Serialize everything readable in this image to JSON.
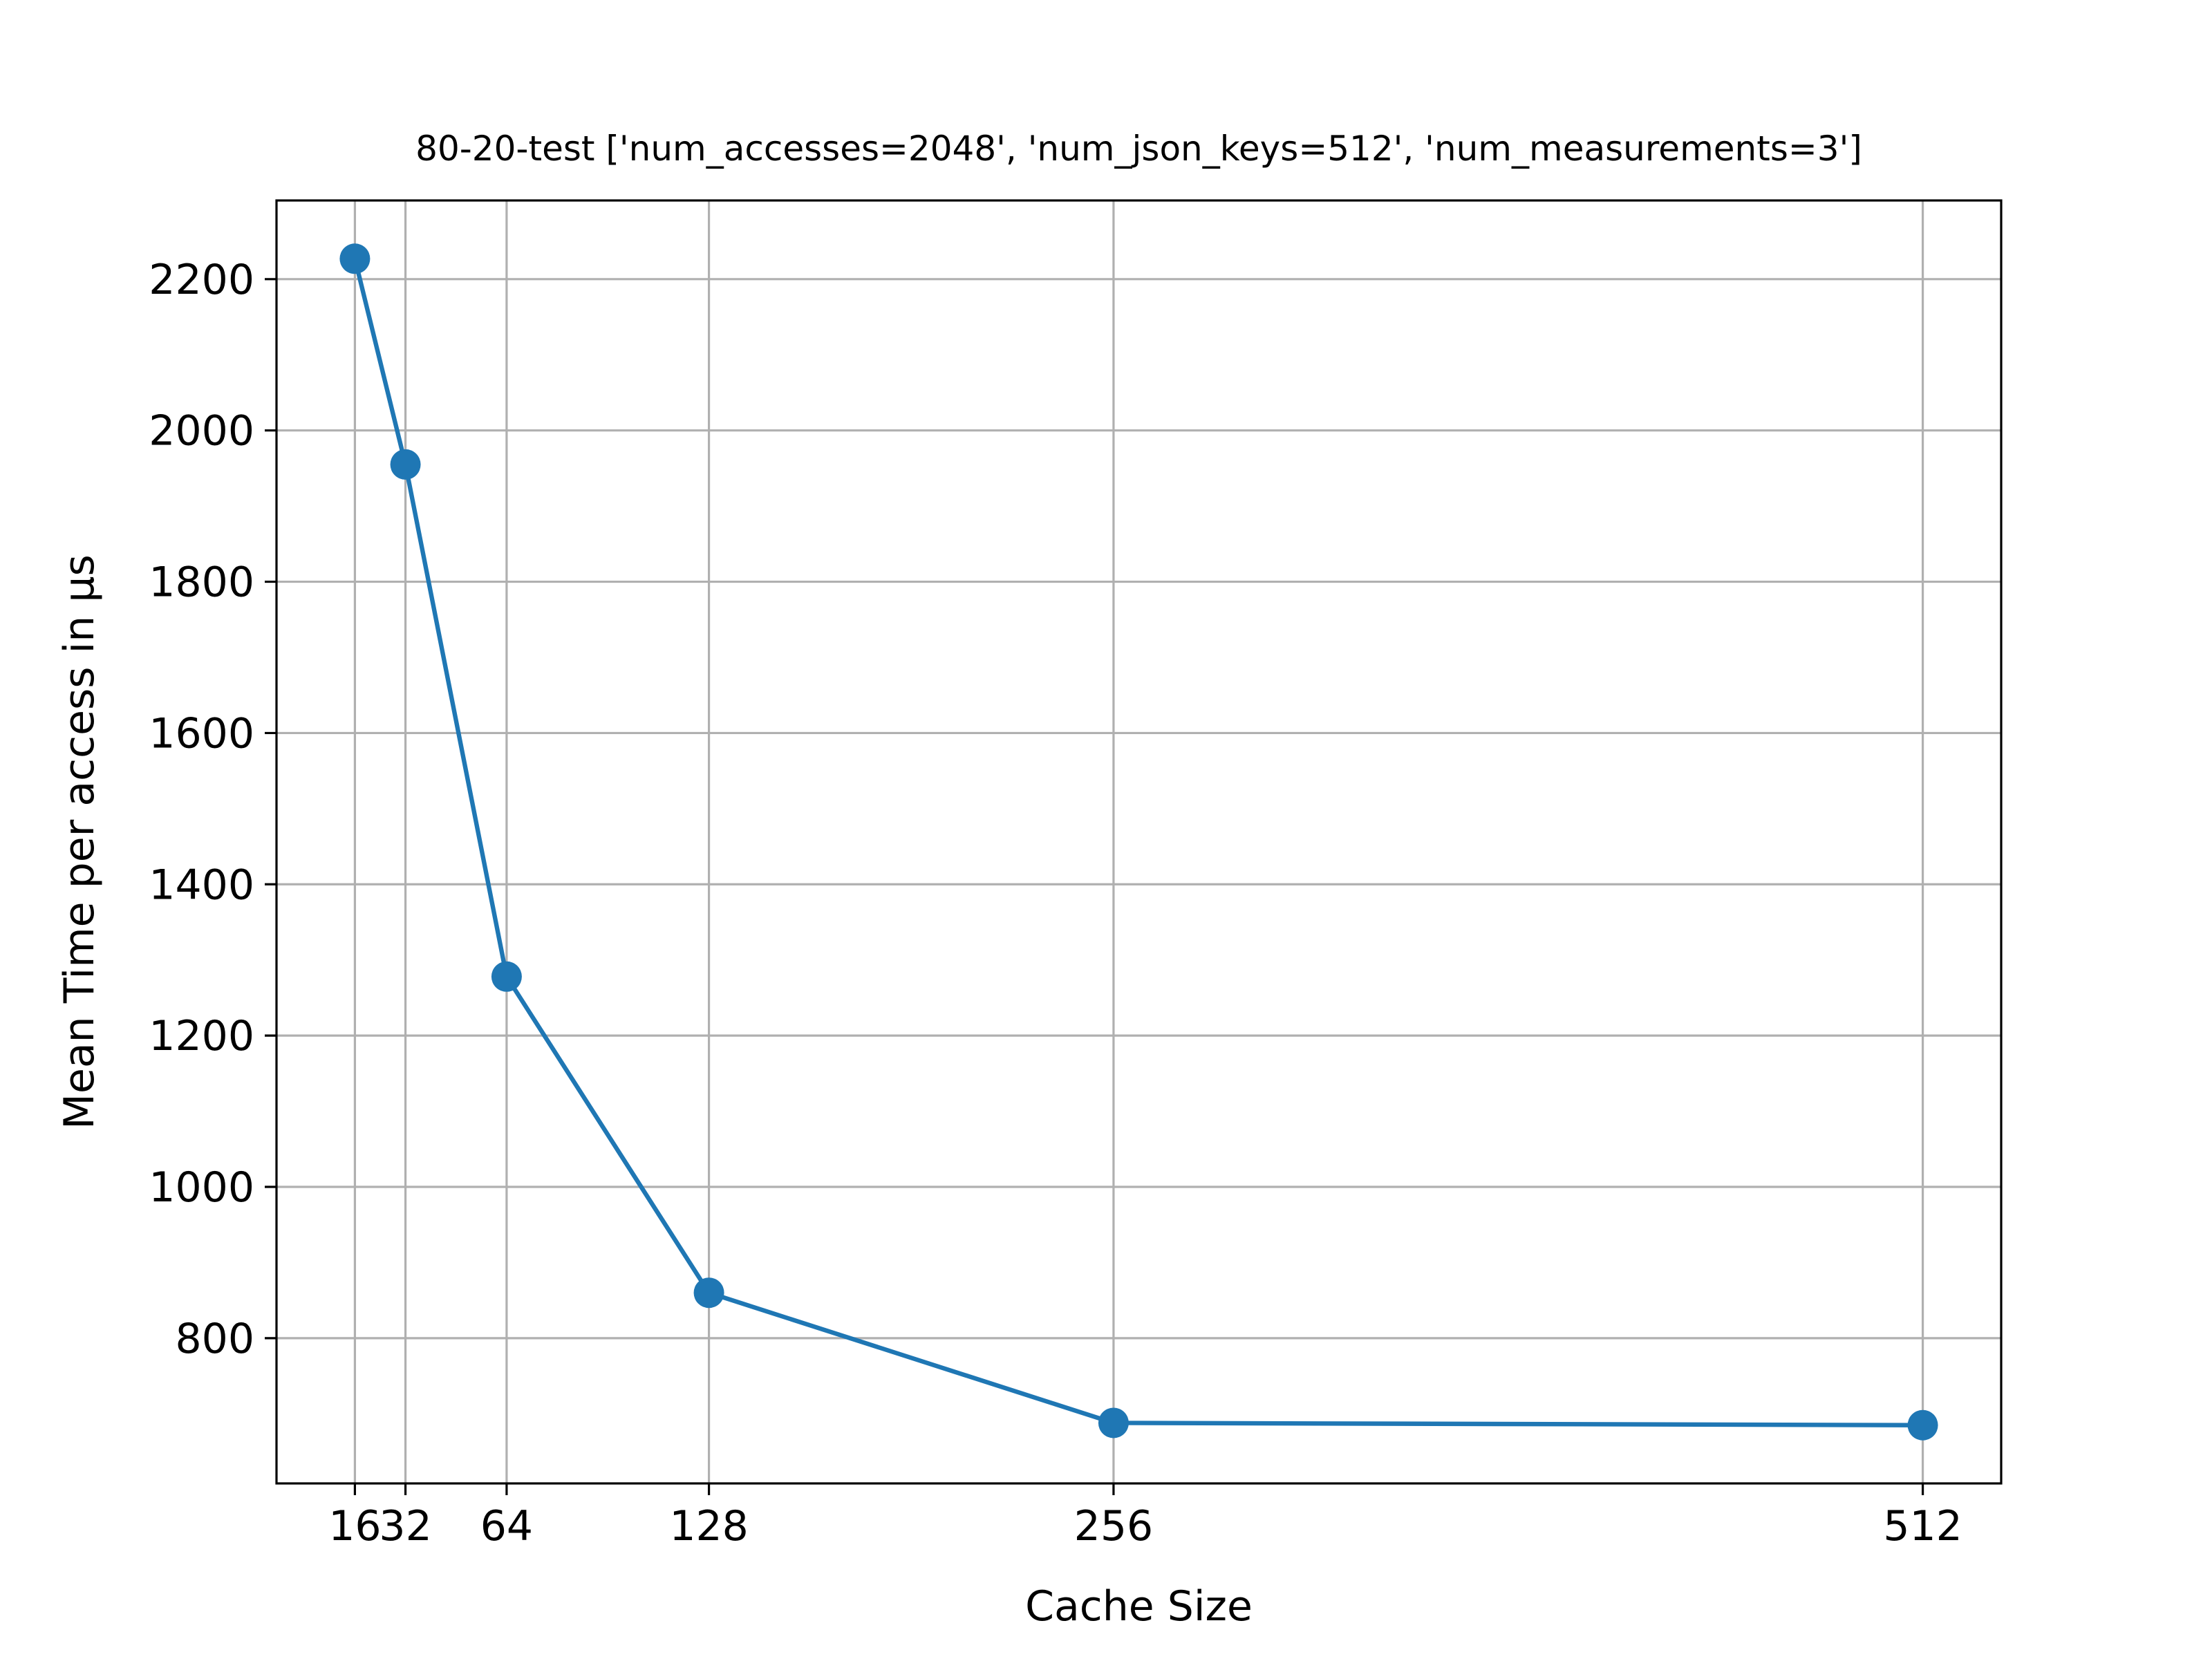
{
  "chart_data": {
    "type": "line",
    "title": "80-20-test ['num_accesses=2048', 'num_json_keys=512', 'num_measurements=3']",
    "xlabel": "Cache Size",
    "ylabel": "Mean Time per access in μs",
    "x": [
      16,
      32,
      64,
      128,
      256,
      512
    ],
    "series": [
      {
        "values": [
          2227,
          1955,
          1278,
          860,
          688,
          685
        ]
      }
    ],
    "xticks": [
      16,
      32,
      64,
      128,
      256,
      512
    ],
    "xtick_labels": [
      "16",
      "32",
      "64",
      "128",
      "256",
      "512"
    ],
    "yticks": [
      800,
      1000,
      1200,
      1400,
      1600,
      1800,
      2000,
      2200
    ],
    "ytick_labels": [
      "800",
      "1000",
      "1200",
      "1400",
      "1600",
      "1800",
      "2000",
      "2200"
    ],
    "xlim": [
      -8.8,
      536.8
    ],
    "ylim": [
      608,
      2304
    ],
    "grid": true,
    "legend": "none",
    "line_color": "#1f77b4"
  }
}
